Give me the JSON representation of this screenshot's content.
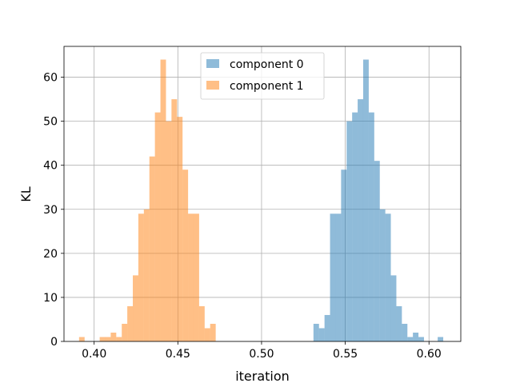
{
  "chart_data": {
    "type": "histogram",
    "title": "",
    "xlabel": "iteration",
    "ylabel": "KL",
    "xlim": [
      0.382,
      0.619
    ],
    "ylim": [
      0,
      67
    ],
    "xticks": [
      "0.40",
      "0.45",
      "0.50",
      "0.55",
      "0.60"
    ],
    "yticks": [
      "0",
      "10",
      "20",
      "30",
      "40",
      "50",
      "60"
    ],
    "grid": true,
    "legend_position": "upper center",
    "series": [
      {
        "name": "component 0",
        "color": "#1f77b4",
        "opacity": 0.5,
        "bin_width": 0.00331,
        "bins": [
          [
            0.531,
            4
          ],
          [
            0.5343,
            3
          ],
          [
            0.5376,
            6
          ],
          [
            0.5409,
            29
          ],
          [
            0.5442,
            29
          ],
          [
            0.5475,
            39
          ],
          [
            0.5508,
            50
          ],
          [
            0.5541,
            52
          ],
          [
            0.5574,
            55
          ],
          [
            0.5607,
            64
          ],
          [
            0.564,
            52
          ],
          [
            0.5673,
            41
          ],
          [
            0.5706,
            30
          ],
          [
            0.5739,
            29
          ],
          [
            0.5772,
            15
          ],
          [
            0.5805,
            8
          ],
          [
            0.5838,
            4
          ],
          [
            0.5871,
            1
          ],
          [
            0.5904,
            2
          ],
          [
            0.5937,
            1
          ],
          [
            0.6052,
            1
          ]
        ]
      },
      {
        "name": "component 1",
        "color": "#ff7f0e",
        "opacity": 0.5,
        "bin_width": 0.00331,
        "bins": [
          [
            0.391,
            1
          ],
          [
            0.4033,
            1
          ],
          [
            0.4066,
            1
          ],
          [
            0.4099,
            2
          ],
          [
            0.4132,
            1
          ],
          [
            0.4165,
            4
          ],
          [
            0.4198,
            8
          ],
          [
            0.4231,
            15
          ],
          [
            0.4264,
            29
          ],
          [
            0.4297,
            30
          ],
          [
            0.433,
            42
          ],
          [
            0.4363,
            52
          ],
          [
            0.4396,
            64
          ],
          [
            0.4429,
            50
          ],
          [
            0.4462,
            55
          ],
          [
            0.4495,
            51
          ],
          [
            0.4528,
            39
          ],
          [
            0.4561,
            29
          ],
          [
            0.4594,
            29
          ],
          [
            0.4627,
            8
          ],
          [
            0.466,
            3
          ],
          [
            0.4693,
            4
          ]
        ]
      }
    ]
  }
}
